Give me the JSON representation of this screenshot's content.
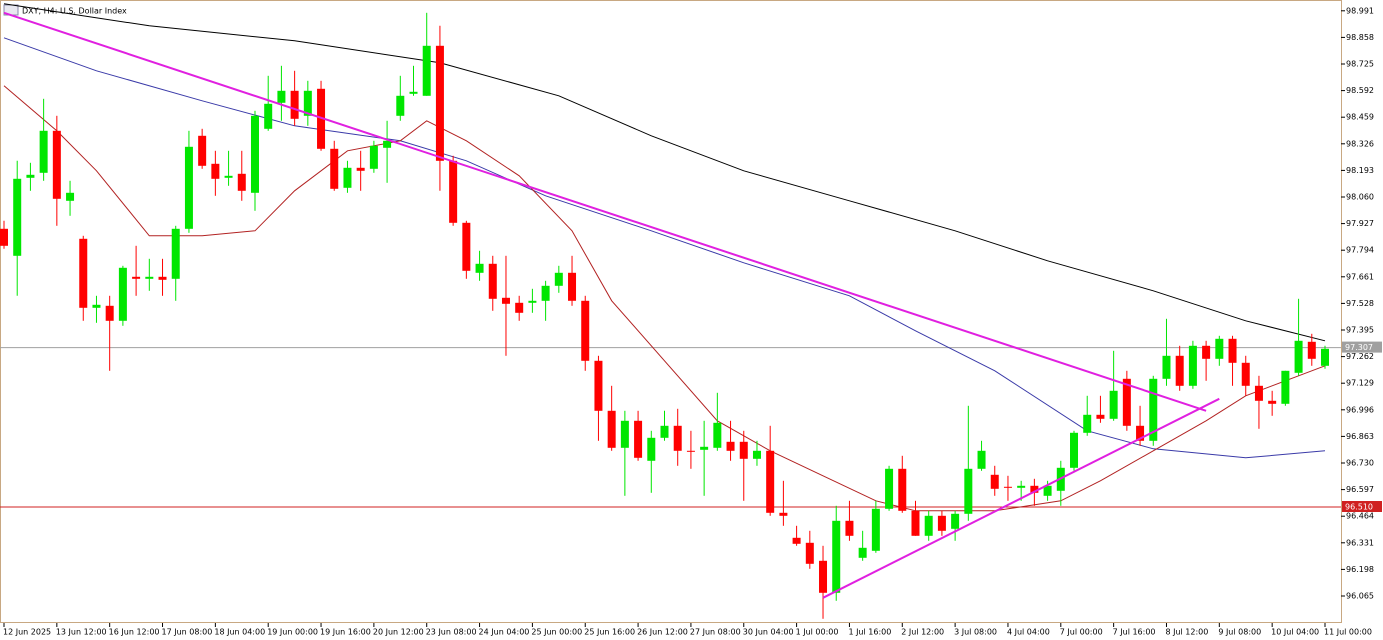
{
  "chart_data": {
    "type": "candlestick",
    "title": "DXY, H4: U.S. Dollar Index",
    "categories": [
      "12 Jun 2025",
      null,
      null,
      null,
      "13 Jun 12:00",
      null,
      null,
      null,
      "16 Jun 12:00",
      null,
      null,
      null,
      "17 Jun 08:00",
      null,
      null,
      null,
      "18 Jun 04:00",
      null,
      null,
      null,
      "19 Jun 00:00",
      null,
      null,
      null,
      "19 Jun 16:00",
      null,
      null,
      null,
      "20 Jun 12:00",
      null,
      null,
      null,
      "23 Jun 08:00",
      null,
      null,
      null,
      "24 Jun 04:00",
      null,
      null,
      null,
      "25 Jun 00:00",
      null,
      null,
      null,
      "25 Jun 16:00",
      null,
      null,
      null,
      "26 Jun 12:00",
      null,
      null,
      null,
      "27 Jun 08:00",
      null,
      null,
      null,
      "30 Jun 04:00",
      null,
      null,
      null,
      "1 Jul 00:00",
      null,
      null,
      null,
      "1 Jul 16:00",
      null,
      null,
      null,
      "2 Jul 12:00",
      null,
      null,
      null,
      "3 Jul 08:00",
      null,
      null,
      null,
      "4 Jul 04:00",
      null,
      null,
      null,
      "7 Jul 00:00",
      null,
      null,
      null,
      "7 Jul 16:00",
      null,
      null,
      null,
      "8 Jul 12:00",
      null,
      null,
      null,
      "9 Jul 08:00",
      null,
      null,
      null,
      "10 Jul 04:00",
      null,
      null,
      null,
      "11 Jul 00:00"
    ],
    "open": [
      97.901,
      97.766,
      98.156,
      98.181,
      98.391,
      98.041,
      97.851,
      97.506,
      97.516,
      97.441,
      97.661,
      97.651,
      97.661,
      97.651,
      97.901,
      98.366,
      98.226,
      98.156,
      98.176,
      98.081,
      98.401,
      98.531,
      98.591,
      98.466,
      98.601,
      98.301,
      98.106,
      98.206,
      98.201,
      98.306,
      98.466,
      98.576,
      98.566,
      98.816,
      98.241,
      97.931,
      97.681,
      97.726,
      97.556,
      97.531,
      97.531,
      97.541,
      97.616,
      97.681,
      97.541,
      97.241,
      96.991,
      96.806,
      96.941,
      96.741,
      96.856,
      96.916,
      96.791,
      96.796,
      96.806,
      96.836,
      96.836,
      96.751,
      96.791,
      96.481,
      96.356,
      96.331,
      96.241,
      96.081,
      96.441,
      96.256,
      96.291,
      96.501,
      96.701,
      96.491,
      96.366,
      96.466,
      96.401,
      96.476,
      96.701,
      96.671,
      96.611,
      96.606,
      96.616,
      96.566,
      96.591,
      96.706,
      96.881,
      96.971,
      96.951,
      97.151,
      96.916,
      96.841,
      97.151,
      97.266,
      97.116,
      97.316,
      97.251,
      97.351,
      97.231,
      97.116,
      97.041,
      97.026,
      97.181,
      97.336,
      97.216
    ],
    "high": [
      97.941,
      98.241,
      98.231,
      98.551,
      98.466,
      98.141,
      97.866,
      97.566,
      97.566,
      97.716,
      97.816,
      97.751,
      97.751,
      97.916,
      98.391,
      98.401,
      98.291,
      98.291,
      98.291,
      98.491,
      98.666,
      98.716,
      98.691,
      98.641,
      98.641,
      98.341,
      98.241,
      98.291,
      98.341,
      98.441,
      98.666,
      98.716,
      98.981,
      98.916,
      98.266,
      97.941,
      97.791,
      97.766,
      97.766,
      97.566,
      97.601,
      97.641,
      97.716,
      97.766,
      97.566,
      97.266,
      97.116,
      96.991,
      96.991,
      96.891,
      96.991,
      97.001,
      96.891,
      96.941,
      97.081,
      96.941,
      96.891,
      96.841,
      96.916,
      96.641,
      96.416,
      96.391,
      96.316,
      96.516,
      96.541,
      96.391,
      96.541,
      96.716,
      96.766,
      96.541,
      96.491,
      96.491,
      96.491,
      97.016,
      96.841,
      96.716,
      96.666,
      96.641,
      96.651,
      96.641,
      96.741,
      96.891,
      97.066,
      97.066,
      97.291,
      97.191,
      97.016,
      97.166,
      97.451,
      97.316,
      97.341,
      97.341,
      97.366,
      97.366,
      97.266,
      97.166,
      97.091,
      97.191,
      97.551,
      97.376,
      97.316
    ],
    "low": [
      97.801,
      97.566,
      98.091,
      98.141,
      97.916,
      97.966,
      97.441,
      97.431,
      97.191,
      97.416,
      97.566,
      97.591,
      97.566,
      97.541,
      97.881,
      98.201,
      98.066,
      98.116,
      98.041,
      97.991,
      98.391,
      98.441,
      98.416,
      98.416,
      98.291,
      98.091,
      98.081,
      98.091,
      98.181,
      98.131,
      98.441,
      98.566,
      98.566,
      98.091,
      97.916,
      97.651,
      97.641,
      97.491,
      97.266,
      97.441,
      97.481,
      97.441,
      97.581,
      97.516,
      97.191,
      96.841,
      96.791,
      96.566,
      96.741,
      96.581,
      96.841,
      96.716,
      96.701,
      96.566,
      96.791,
      96.741,
      96.541,
      96.716,
      96.466,
      96.416,
      96.316,
      96.201,
      95.951,
      96.041,
      96.341,
      96.241,
      96.281,
      96.491,
      96.481,
      96.366,
      96.341,
      96.366,
      96.341,
      96.441,
      96.691,
      96.566,
      96.541,
      96.541,
      96.516,
      96.541,
      96.516,
      96.691,
      96.866,
      96.931,
      96.941,
      96.891,
      96.816,
      96.816,
      97.116,
      97.091,
      97.101,
      97.141,
      97.216,
      97.116,
      97.066,
      96.901,
      96.966,
      97.016,
      97.166,
      97.216,
      97.201
    ],
    "close": [
      97.816,
      98.151,
      98.171,
      98.391,
      98.051,
      98.081,
      97.506,
      97.521,
      97.441,
      97.706,
      97.651,
      97.661,
      97.646,
      97.901,
      98.311,
      98.216,
      98.151,
      98.166,
      98.091,
      98.466,
      98.526,
      98.591,
      98.451,
      98.591,
      98.301,
      98.101,
      98.206,
      98.191,
      98.316,
      98.341,
      98.566,
      98.586,
      98.816,
      98.241,
      97.931,
      97.691,
      97.726,
      97.551,
      97.526,
      97.481,
      97.541,
      97.616,
      97.681,
      97.541,
      97.241,
      96.991,
      96.806,
      96.941,
      96.756,
      96.856,
      96.916,
      96.791,
      96.786,
      96.811,
      96.931,
      96.791,
      96.751,
      96.791,
      96.481,
      96.466,
      96.326,
      96.226,
      96.081,
      96.441,
      96.366,
      96.306,
      96.501,
      96.701,
      96.491,
      96.366,
      96.466,
      96.391,
      96.476,
      96.701,
      96.791,
      96.601,
      96.606,
      96.616,
      96.581,
      96.616,
      96.706,
      96.881,
      96.971,
      96.951,
      97.091,
      96.916,
      96.841,
      97.151,
      97.266,
      97.116,
      97.316,
      97.251,
      97.351,
      97.231,
      97.116,
      97.041,
      97.026,
      97.191,
      97.341,
      97.251,
      97.301
    ],
    "up_color": "#00e600",
    "down_color": "#ff0000",
    "lines": [
      {
        "color": "#000000",
        "x": [
          0,
          11,
          22,
          33,
          42,
          49,
          56,
          64,
          72,
          79,
          87,
          94,
          100
        ],
        "values": [
          99.026,
          98.916,
          98.841,
          98.731,
          98.566,
          98.366,
          98.191,
          98.041,
          97.891,
          97.741,
          97.591,
          97.441,
          97.341
        ]
      },
      {
        "color": "#3a3aa8",
        "x": [
          0,
          7,
          15,
          22,
          30,
          35,
          41,
          49,
          56,
          64,
          69,
          75,
          82,
          87,
          94,
          100
        ],
        "values": [
          98.856,
          98.691,
          98.541,
          98.416,
          98.341,
          98.241,
          98.066,
          97.891,
          97.731,
          97.566,
          97.391,
          97.191,
          96.891,
          96.801,
          96.756,
          96.791
        ]
      },
      {
        "color": "#b22222",
        "x": [
          0,
          4,
          7,
          11,
          15,
          19,
          22,
          26,
          30,
          32,
          35,
          39,
          43,
          46,
          50,
          54,
          58,
          62,
          66,
          69,
          75,
          80,
          83,
          87,
          91,
          94,
          98,
          100
        ],
        "values": [
          98.616,
          98.391,
          98.191,
          97.866,
          97.866,
          97.891,
          98.091,
          98.291,
          98.341,
          98.441,
          98.341,
          98.166,
          97.891,
          97.541,
          97.241,
          96.941,
          96.791,
          96.666,
          96.541,
          96.491,
          96.491,
          96.541,
          96.641,
          96.791,
          96.941,
          97.066,
          97.166,
          97.216
        ]
      },
      {
        "color": "#e020e0",
        "x": [
          0,
          91
        ],
        "values": [
          98.981,
          96.991
        ]
      },
      {
        "color": "#e020e0",
        "x": [
          62,
          92
        ],
        "values": [
          96.056,
          97.051
        ]
      }
    ],
    "hlines": [
      {
        "value": 97.307,
        "color": "#a0a0a0"
      },
      {
        "value": {
          "value": 96.51,
          "label": "96.510"
        },
        "color": "#d02020"
      }
    ],
    "ylim": [
      95.93,
      99.03
    ],
    "yticks": [
      98.991,
      98.858,
      98.725,
      98.592,
      98.459,
      98.326,
      98.193,
      {
        "value": 98.06,
        "label": "98.060"
      },
      97.927,
      97.794,
      97.661,
      97.528,
      97.395,
      97.262,
      97.129,
      96.996,
      96.863,
      {
        "value": 96.73,
        "label": "96.730"
      },
      96.597,
      96.464,
      96.331,
      96.198,
      96.065
    ]
  }
}
